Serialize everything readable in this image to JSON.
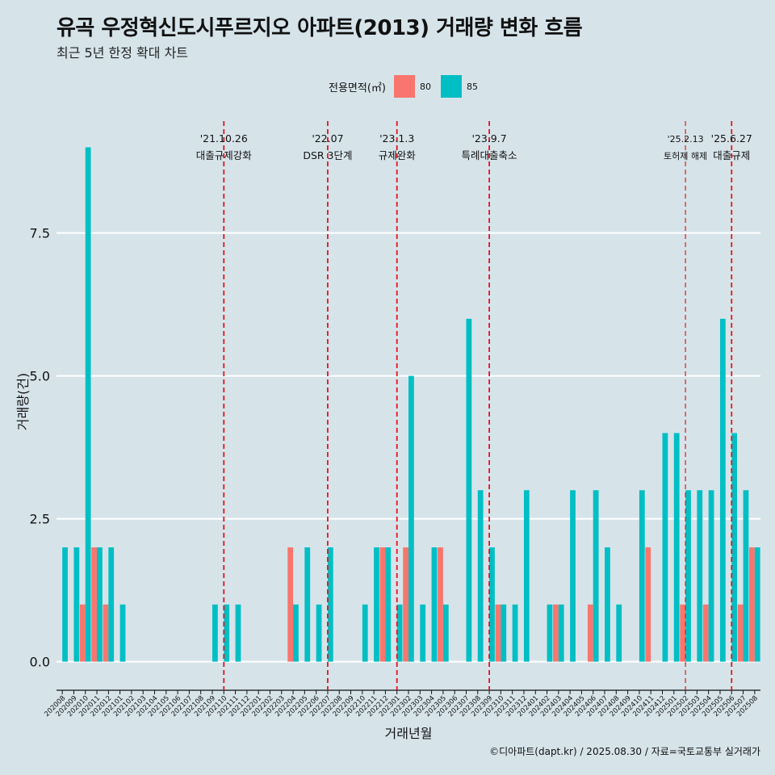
{
  "title": "유곡 우정혁신도시푸르지오 아파트(2013) 거래량 변화 흐름",
  "subtitle": "최근 5년 한정 확대 차트",
  "legend": {
    "title": "전용면적(㎡)",
    "items": [
      {
        "label": "80",
        "color": "#f8766d"
      },
      {
        "label": "85",
        "color": "#00bfc4"
      }
    ]
  },
  "caption": "©디아파트(dapt.kr) / 2025.08.30 / 자료=국토교통부 실거래가",
  "chart_data": {
    "type": "bar",
    "xlabel": "거래년월",
    "ylabel": "거래량(건)",
    "ylim": [
      -0.5,
      9.6
    ],
    "yticks": [
      0.0,
      2.5,
      5.0,
      7.5
    ],
    "ytick_labels": [
      "0.0",
      "2.5",
      "5.0",
      "7.5"
    ],
    "grid": true,
    "categories": [
      "202008",
      "202009",
      "202010",
      "202011",
      "202012",
      "202101",
      "202102",
      "202103",
      "202104",
      "202105",
      "202106",
      "202107",
      "202108",
      "202109",
      "202110",
      "202111",
      "202112",
      "202201",
      "202202",
      "202203",
      "202204",
      "202205",
      "202206",
      "202207",
      "202208",
      "202209",
      "202210",
      "202211",
      "202212",
      "202301",
      "202302",
      "202303",
      "202304",
      "202305",
      "202306",
      "202307",
      "202308",
      "202309",
      "202310",
      "202311",
      "202312",
      "202401",
      "202402",
      "202403",
      "202404",
      "202405",
      "202406",
      "202407",
      "202408",
      "202409",
      "202410",
      "202411",
      "202412",
      "202501",
      "202502",
      "202503",
      "202504",
      "202505",
      "202506",
      "202507",
      "202508"
    ],
    "series": [
      {
        "name": "80",
        "color": "#f8766d",
        "values": [
          0,
          0,
          1,
          2,
          1,
          0,
          0,
          0,
          0,
          0,
          0,
          0,
          0,
          0,
          0,
          0,
          0,
          0,
          0,
          0,
          2,
          0,
          0,
          0,
          0,
          0,
          0,
          0,
          2,
          0,
          2,
          0,
          0,
          2,
          0,
          0,
          0,
          0,
          1,
          0,
          0,
          0,
          0,
          1,
          0,
          0,
          1,
          0,
          0,
          0,
          0,
          2,
          0,
          0,
          1,
          0,
          1,
          0,
          0,
          1,
          2
        ]
      },
      {
        "name": "85",
        "color": "#00bfc4",
        "values": [
          2,
          2,
          9,
          2,
          2,
          1,
          0,
          0,
          0,
          0,
          0,
          0,
          0,
          1,
          1,
          1,
          0,
          0,
          0,
          0,
          1,
          2,
          1,
          2,
          0,
          0,
          1,
          2,
          2,
          1,
          5,
          1,
          2,
          1,
          0,
          6,
          3,
          2,
          1,
          1,
          3,
          0,
          1,
          1,
          3,
          0,
          3,
          2,
          1,
          0,
          3,
          0,
          4,
          4,
          3,
          3,
          3,
          6,
          4,
          3,
          2
        ]
      }
    ],
    "events": [
      {
        "x": "202110",
        "date": "'21.10.26",
        "label": "대출규제강화"
      },
      {
        "x": "202207",
        "date": "'22.07",
        "label": "DSR 3단계"
      },
      {
        "x": "202301",
        "date": "'23.1.3",
        "label": "규제완화"
      },
      {
        "x": "202309",
        "date": "'23.9.7",
        "label": "특례대출축소"
      },
      {
        "x": "202502",
        "date": "'25.2.13",
        "label": "토허제 해제"
      },
      {
        "x": "202506",
        "date": "'25.6.27",
        "label": "대출규제"
      }
    ]
  }
}
